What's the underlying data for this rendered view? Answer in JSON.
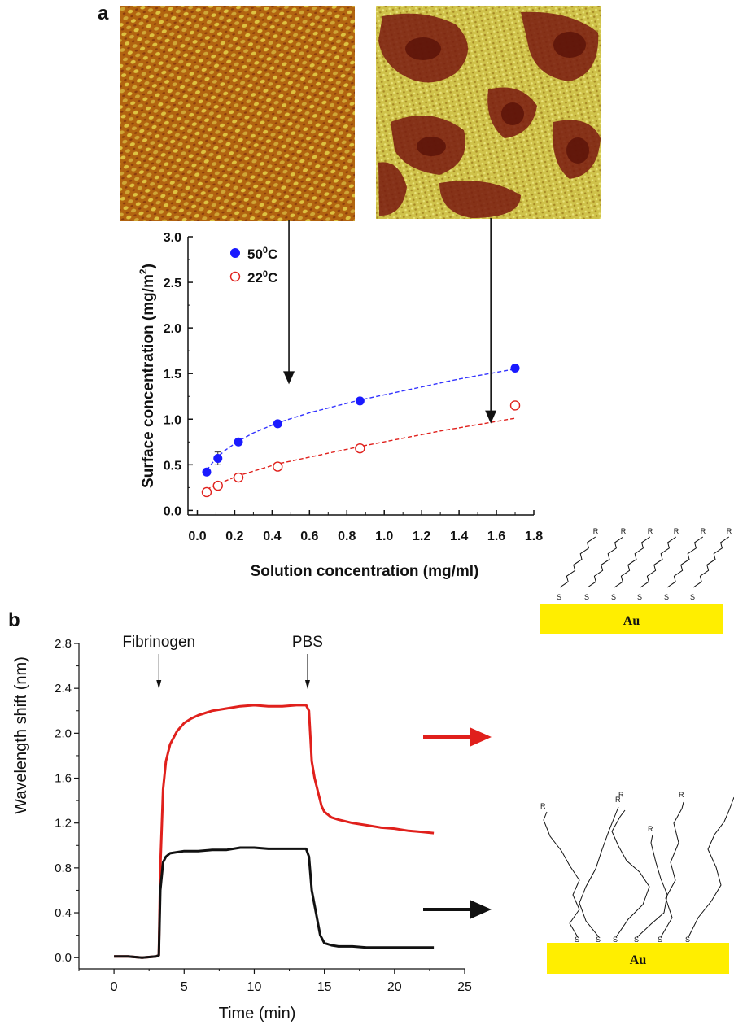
{
  "panel_a": {
    "label": "a",
    "images": [
      {
        "name": "afm-image-ordered",
        "palette": "ordered-lattice"
      },
      {
        "name": "afm-image-disordered",
        "palette": "disordered-patches"
      }
    ]
  },
  "panel_b": {
    "label": "b",
    "diagram": {
      "substrate_label": "Au",
      "thiol_label": "S",
      "endgroup_label": "R"
    }
  },
  "chart_data": [
    {
      "type": "scatter",
      "title": "",
      "xlabel": "Solution concentration (mg/ml)",
      "ylabel_main": "Surface concentration (mg/m",
      "ylabel_sup": "2",
      "ylabel_end": ")",
      "xlim": [
        -0.05,
        1.8
      ],
      "ylim": [
        -0.05,
        3.0
      ],
      "xticks": [
        "0.0",
        "0.2",
        "0.4",
        "0.6",
        "0.8",
        "1.0",
        "1.2",
        "1.4",
        "1.6",
        "1.8"
      ],
      "yticks": [
        "0.0",
        "0.5",
        "1.0",
        "1.5",
        "2.0",
        "2.5",
        "3.0"
      ],
      "legend_position": "top-left",
      "series": [
        {
          "name": "50",
          "name_sup": "0",
          "name_end": "C",
          "marker": "filled-circle",
          "color": "#1a1aff",
          "x": [
            0.05,
            0.11,
            0.22,
            0.43,
            0.87,
            1.7
          ],
          "y": [
            0.42,
            0.57,
            0.75,
            0.95,
            1.2,
            1.56
          ],
          "error": [
            0.0,
            0.07,
            0.0,
            0.0,
            0.0,
            0.0
          ],
          "fit_color": "#3333ff",
          "fit_x": [
            0.05,
            0.08,
            0.11,
            0.15,
            0.22,
            0.3,
            0.43,
            0.6,
            0.87,
            1.1,
            1.4,
            1.7
          ],
          "fit_y": [
            0.44,
            0.52,
            0.59,
            0.66,
            0.76,
            0.85,
            0.96,
            1.07,
            1.21,
            1.31,
            1.44,
            1.55
          ]
        },
        {
          "name": "22",
          "name_sup": "0",
          "name_end": "C",
          "marker": "open-circle",
          "color": "#e0201c",
          "x": [
            0.05,
            0.11,
            0.22,
            0.43,
            0.87,
            1.7
          ],
          "y": [
            0.2,
            0.27,
            0.36,
            0.48,
            0.68,
            1.15
          ],
          "error": [
            0,
            0,
            0,
            0,
            0,
            0
          ],
          "fit_color": "#e0201c",
          "fit_x": [
            0.05,
            0.11,
            0.22,
            0.43,
            0.87,
            1.3,
            1.7
          ],
          "fit_y": [
            0.23,
            0.29,
            0.38,
            0.51,
            0.7,
            0.87,
            1.01
          ]
        }
      ],
      "annotations": [
        {
          "type": "arrow",
          "from_x": 0.49,
          "from_y": 3.3,
          "to_x": 0.49,
          "to_y": 1.4
        },
        {
          "type": "arrow",
          "from_x": 1.57,
          "from_y": 3.3,
          "to_x": 1.57,
          "to_y": 0.97
        }
      ]
    },
    {
      "type": "line",
      "title": "",
      "xlabel": "Time (min)",
      "ylabel": "Wavelength shift (nm)",
      "xlim": [
        -2.5,
        25
      ],
      "ylim": [
        -0.1,
        2.8
      ],
      "xticks": [
        "0",
        "5",
        "10",
        "15",
        "20",
        "25"
      ],
      "yticks": [
        "0.0",
        "0.4",
        "0.8",
        "1.2",
        "1.6",
        "2.0",
        "2.4",
        "2.8"
      ],
      "annotations": [
        {
          "text": "Fibrinogen",
          "x": 3.2
        },
        {
          "text": "PBS",
          "x": 13.8
        }
      ],
      "series": [
        {
          "color": "#e0201c",
          "x": [
            0,
            1,
            2,
            3,
            3.2,
            3.3,
            3.5,
            3.7,
            4,
            4.5,
            5,
            5.5,
            6,
            7,
            8,
            9,
            10,
            11,
            12,
            13,
            13.7,
            13.9,
            14.1,
            14.3,
            14.6,
            14.8,
            15,
            15.5,
            16,
            17,
            18,
            19,
            20,
            21,
            22,
            22.8
          ],
          "y": [
            0.01,
            0.01,
            0.0,
            0.01,
            0.02,
            0.8,
            1.5,
            1.75,
            1.9,
            2.02,
            2.09,
            2.13,
            2.16,
            2.2,
            2.22,
            2.24,
            2.25,
            2.24,
            2.24,
            2.25,
            2.25,
            2.2,
            1.75,
            1.6,
            1.45,
            1.35,
            1.3,
            1.25,
            1.23,
            1.2,
            1.18,
            1.16,
            1.15,
            1.13,
            1.12,
            1.11
          ]
        },
        {
          "color": "#111111",
          "x": [
            0,
            1,
            2,
            3,
            3.2,
            3.3,
            3.5,
            3.7,
            4,
            5,
            6,
            7,
            8,
            9,
            10,
            11,
            12,
            13,
            13.7,
            13.9,
            14.1,
            14.4,
            14.7,
            15,
            15.5,
            16,
            17,
            18,
            19,
            20,
            21,
            22,
            22.8
          ],
          "y": [
            0.01,
            0.01,
            0.0,
            0.01,
            0.02,
            0.6,
            0.85,
            0.9,
            0.93,
            0.95,
            0.95,
            0.96,
            0.96,
            0.98,
            0.98,
            0.97,
            0.97,
            0.97,
            0.97,
            0.9,
            0.6,
            0.4,
            0.2,
            0.13,
            0.11,
            0.1,
            0.1,
            0.09,
            0.09,
            0.09,
            0.09,
            0.09,
            0.09
          ]
        }
      ]
    }
  ]
}
